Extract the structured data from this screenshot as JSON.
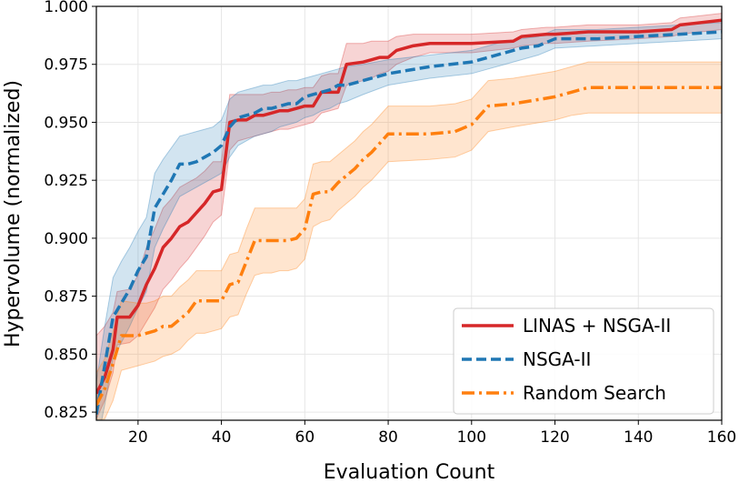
{
  "chart_data": {
    "type": "line",
    "title": "",
    "xlabel": "Evaluation Count",
    "ylabel": "Hypervolume (normalized)",
    "xlim": [
      10,
      160
    ],
    "ylim": [
      0.8215,
      1.0
    ],
    "xticks": [
      20,
      40,
      60,
      80,
      100,
      120,
      140,
      160
    ],
    "yticks": [
      0.825,
      0.85,
      0.875,
      0.9,
      0.925,
      0.95,
      0.975,
      1.0
    ],
    "xtick_labels": [
      "20",
      "40",
      "60",
      "80",
      "100",
      "120",
      "140",
      "160"
    ],
    "ytick_labels": [
      "0.825",
      "0.850",
      "0.875",
      "0.900",
      "0.925",
      "0.950",
      "0.975",
      "1.000"
    ],
    "grid": true,
    "legend_position": "bottom-right",
    "series": [
      {
        "name": "LINAS + NSGA-II",
        "color": "#d62728",
        "style": "solid",
        "x": [
          10,
          12,
          14,
          15,
          18,
          20,
          22,
          24,
          26,
          28,
          30,
          32,
          34,
          36,
          38,
          40,
          42,
          44,
          46,
          48,
          50,
          52,
          54,
          56,
          58,
          60,
          62,
          64,
          66,
          68,
          70,
          74,
          76,
          78,
          80,
          82,
          86,
          90,
          100,
          110,
          112,
          118,
          120,
          128,
          140,
          148,
          150,
          160
        ],
        "y": [
          0.833,
          0.84,
          0.852,
          0.866,
          0.866,
          0.871,
          0.88,
          0.887,
          0.896,
          0.9,
          0.905,
          0.907,
          0.911,
          0.915,
          0.92,
          0.921,
          0.95,
          0.951,
          0.951,
          0.953,
          0.953,
          0.954,
          0.955,
          0.955,
          0.956,
          0.957,
          0.957,
          0.963,
          0.963,
          0.963,
          0.975,
          0.976,
          0.977,
          0.978,
          0.978,
          0.981,
          0.983,
          0.984,
          0.984,
          0.985,
          0.987,
          0.988,
          0.988,
          0.989,
          0.989,
          0.99,
          0.992,
          0.994
        ],
        "lower": [
          0.822,
          0.83,
          0.842,
          0.854,
          0.855,
          0.858,
          0.864,
          0.87,
          0.878,
          0.882,
          0.887,
          0.891,
          0.896,
          0.901,
          0.907,
          0.91,
          0.938,
          0.942,
          0.943,
          0.944,
          0.945,
          0.946,
          0.947,
          0.947,
          0.948,
          0.949,
          0.95,
          0.954,
          0.955,
          0.956,
          0.966,
          0.968,
          0.969,
          0.971,
          0.972,
          0.975,
          0.978,
          0.98,
          0.98,
          0.982,
          0.983,
          0.984,
          0.984,
          0.985,
          0.986,
          0.987,
          0.988,
          0.99
        ],
        "upper": [
          0.858,
          0.862,
          0.868,
          0.877,
          0.878,
          0.884,
          0.896,
          0.904,
          0.913,
          0.917,
          0.922,
          0.924,
          0.926,
          0.929,
          0.933,
          0.933,
          0.962,
          0.962,
          0.962,
          0.962,
          0.962,
          0.963,
          0.963,
          0.964,
          0.964,
          0.965,
          0.965,
          0.97,
          0.971,
          0.971,
          0.984,
          0.984,
          0.985,
          0.985,
          0.985,
          0.987,
          0.988,
          0.988,
          0.988,
          0.989,
          0.99,
          0.991,
          0.991,
          0.992,
          0.992,
          0.993,
          0.995,
          0.997
        ]
      },
      {
        "name": "NSGA-II",
        "color": "#1f77b4",
        "style": "dashed",
        "x": [
          10,
          12,
          14,
          16,
          18,
          20,
          22,
          24,
          26,
          28,
          30,
          32,
          34,
          36,
          38,
          40,
          42,
          44,
          46,
          48,
          50,
          52,
          54,
          56,
          58,
          60,
          62,
          64,
          66,
          68,
          70,
          74,
          80,
          90,
          100,
          104,
          108,
          112,
          116,
          120,
          130,
          140,
          150,
          160
        ],
        "y": [
          0.824,
          0.845,
          0.866,
          0.872,
          0.878,
          0.886,
          0.892,
          0.913,
          0.919,
          0.925,
          0.932,
          0.932,
          0.933,
          0.935,
          0.937,
          0.94,
          0.948,
          0.952,
          0.953,
          0.954,
          0.956,
          0.956,
          0.957,
          0.958,
          0.958,
          0.961,
          0.962,
          0.963,
          0.964,
          0.966,
          0.966,
          0.968,
          0.971,
          0.974,
          0.976,
          0.978,
          0.98,
          0.982,
          0.983,
          0.986,
          0.986,
          0.987,
          0.988,
          0.989
        ],
        "lower": [
          0.81,
          0.828,
          0.848,
          0.855,
          0.862,
          0.87,
          0.877,
          0.896,
          0.904,
          0.911,
          0.918,
          0.92,
          0.922,
          0.924,
          0.926,
          0.928,
          0.935,
          0.94,
          0.942,
          0.944,
          0.945,
          0.946,
          0.948,
          0.949,
          0.95,
          0.952,
          0.953,
          0.955,
          0.956,
          0.958,
          0.959,
          0.962,
          0.966,
          0.969,
          0.971,
          0.973,
          0.975,
          0.977,
          0.979,
          0.982,
          0.983,
          0.984,
          0.985,
          0.986
        ],
        "upper": [
          0.838,
          0.862,
          0.883,
          0.89,
          0.896,
          0.903,
          0.909,
          0.928,
          0.934,
          0.939,
          0.944,
          0.945,
          0.946,
          0.947,
          0.948,
          0.951,
          0.96,
          0.963,
          0.964,
          0.965,
          0.966,
          0.966,
          0.967,
          0.968,
          0.968,
          0.969,
          0.97,
          0.971,
          0.972,
          0.973,
          0.974,
          0.975,
          0.977,
          0.979,
          0.981,
          0.983,
          0.985,
          0.986,
          0.987,
          0.99,
          0.99,
          0.991,
          0.992,
          0.993
        ]
      },
      {
        "name": "Random Search",
        "color": "#ff7f0e",
        "style": "dashdot",
        "x": [
          10,
          12,
          14,
          16,
          20,
          22,
          24,
          26,
          28,
          30,
          32,
          34,
          36,
          38,
          40,
          42,
          44,
          46,
          48,
          50,
          52,
          54,
          56,
          58,
          60,
          62,
          64,
          66,
          68,
          70,
          72,
          74,
          76,
          78,
          80,
          90,
          96,
          100,
          104,
          110,
          120,
          124,
          128,
          140,
          150,
          160
        ],
        "y": [
          0.828,
          0.835,
          0.846,
          0.858,
          0.858,
          0.859,
          0.86,
          0.862,
          0.862,
          0.865,
          0.868,
          0.873,
          0.873,
          0.873,
          0.873,
          0.88,
          0.881,
          0.89,
          0.899,
          0.899,
          0.899,
          0.899,
          0.899,
          0.9,
          0.904,
          0.919,
          0.92,
          0.92,
          0.924,
          0.927,
          0.93,
          0.934,
          0.937,
          0.941,
          0.945,
          0.945,
          0.946,
          0.949,
          0.957,
          0.958,
          0.961,
          0.963,
          0.965,
          0.965,
          0.965,
          0.965
        ],
        "lower": [
          0.822,
          0.822,
          0.83,
          0.843,
          0.845,
          0.846,
          0.847,
          0.849,
          0.85,
          0.852,
          0.856,
          0.859,
          0.859,
          0.86,
          0.861,
          0.866,
          0.867,
          0.876,
          0.884,
          0.885,
          0.885,
          0.886,
          0.886,
          0.887,
          0.891,
          0.905,
          0.907,
          0.908,
          0.912,
          0.915,
          0.918,
          0.922,
          0.925,
          0.929,
          0.933,
          0.934,
          0.935,
          0.938,
          0.946,
          0.948,
          0.951,
          0.953,
          0.954,
          0.954,
          0.954,
          0.954
        ],
        "upper": [
          0.842,
          0.848,
          0.86,
          0.873,
          0.872,
          0.872,
          0.873,
          0.875,
          0.875,
          0.879,
          0.882,
          0.886,
          0.886,
          0.886,
          0.886,
          0.893,
          0.894,
          0.904,
          0.913,
          0.913,
          0.913,
          0.913,
          0.913,
          0.913,
          0.917,
          0.932,
          0.933,
          0.933,
          0.936,
          0.939,
          0.942,
          0.946,
          0.949,
          0.953,
          0.957,
          0.957,
          0.958,
          0.96,
          0.968,
          0.969,
          0.972,
          0.974,
          0.976,
          0.976,
          0.976,
          0.976
        ]
      }
    ]
  }
}
